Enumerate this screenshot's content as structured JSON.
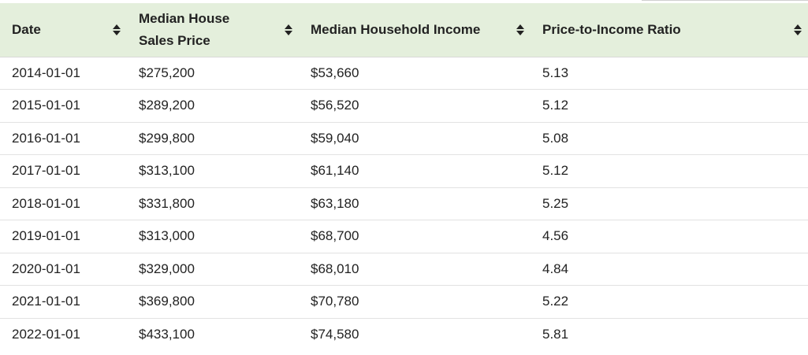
{
  "table": {
    "columns": [
      {
        "label": "Date"
      },
      {
        "label": "Median House Sales Price"
      },
      {
        "label": "Median Household Income"
      },
      {
        "label": "Price-to-Income Ratio"
      }
    ],
    "rows": [
      [
        "2014-01-01",
        "$275,200",
        "$53,660",
        "5.13"
      ],
      [
        "2015-01-01",
        "$289,200",
        "$56,520",
        "5.12"
      ],
      [
        "2016-01-01",
        "$299,800",
        "$59,040",
        "5.08"
      ],
      [
        "2017-01-01",
        "$313,100",
        "$61,140",
        "5.12"
      ],
      [
        "2018-01-01",
        "$331,800",
        "$63,180",
        "5.25"
      ],
      [
        "2019-01-01",
        "$313,000",
        "$68,700",
        "4.56"
      ],
      [
        "2020-01-01",
        "$329,000",
        "$68,010",
        "4.84"
      ],
      [
        "2021-01-01",
        "$369,800",
        "$70,780",
        "5.22"
      ],
      [
        "2022-01-01",
        "$433,100",
        "$74,580",
        "5.81"
      ]
    ],
    "colors": {
      "header_bg": "#e4efdc",
      "text": "#222222",
      "row_border": "#e2e2e2"
    },
    "sort_icon": "sort-updown-icon"
  }
}
